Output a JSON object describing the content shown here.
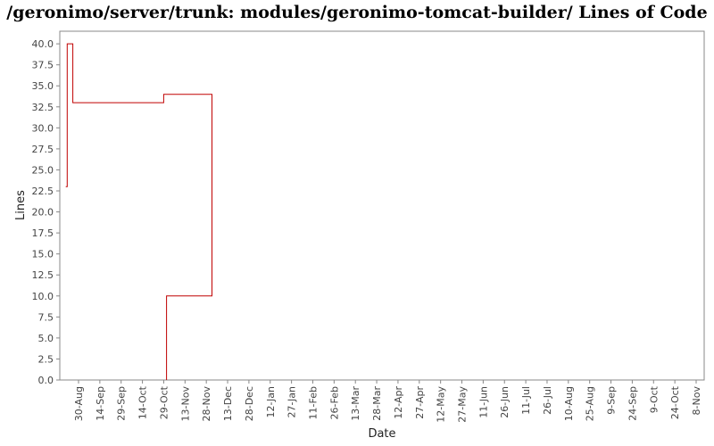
{
  "chart_data": {
    "type": "line",
    "title": "/geronimo/server/trunk: modules/geronimo-tomcat-builder/ Lines of Code",
    "xlabel": "Date",
    "ylabel": "Lines",
    "ylim": [
      0,
      41.5
    ],
    "yticks": [
      "0.0",
      "2.5",
      "5.0",
      "7.5",
      "10.0",
      "12.5",
      "15.0",
      "17.5",
      "20.0",
      "22.5",
      "25.0",
      "27.5",
      "30.0",
      "32.5",
      "35.0",
      "37.5",
      "40.0"
    ],
    "xticks": [
      "30-Aug",
      "14-Sep",
      "29-Sep",
      "14-Oct",
      "29-Oct",
      "13-Nov",
      "28-Nov",
      "13-Dec",
      "28-Dec",
      "12-Jan",
      "27-Jan",
      "11-Feb",
      "26-Feb",
      "13-Mar",
      "28-Mar",
      "12-Apr",
      "27-Apr",
      "12-May",
      "27-May",
      "11-Jun",
      "26-Jun",
      "11-Jul",
      "26-Jul",
      "10-Aug",
      "25-Aug",
      "9-Sep",
      "24-Sep",
      "9-Oct",
      "24-Oct",
      "8-Nov"
    ],
    "step": true,
    "grid": false,
    "color": "#c00000",
    "series": [
      {
        "name": "",
        "x": [
          "21-Aug",
          "22-Aug",
          "26-Aug",
          "29-Oct",
          "2-Dec",
          "31-Oct",
          "31-Oct"
        ],
        "values": [
          23,
          40,
          33,
          34,
          10,
          10,
          0
        ]
      }
    ]
  }
}
